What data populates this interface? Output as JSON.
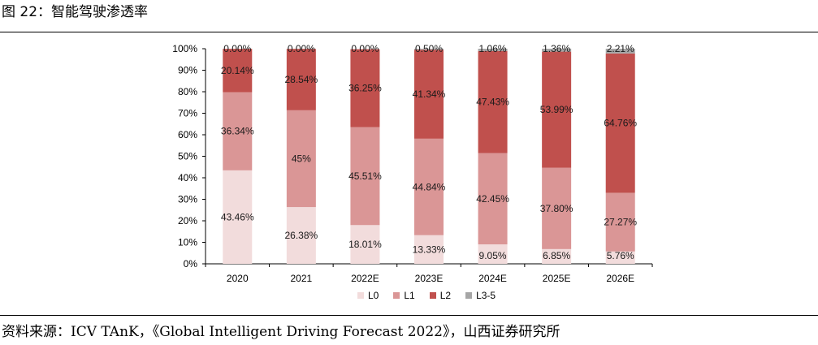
{
  "header": {
    "title": "图 22：智能驾驶渗透率"
  },
  "footer": {
    "source": "资料来源：ICV TAnK，《Global Intelligent Driving Forecast 2022》，山西证券研究所"
  },
  "chart_data": {
    "type": "bar",
    "stacked": true,
    "categories": [
      "2020",
      "2021",
      "2022E",
      "2023E",
      "2024E",
      "2025E",
      "2026E"
    ],
    "y_ticks": [
      "0%",
      "10%",
      "20%",
      "30%",
      "40%",
      "50%",
      "60%",
      "70%",
      "80%",
      "90%",
      "100%"
    ],
    "ylim": [
      0,
      100
    ],
    "legend_position": "bottom",
    "series": [
      {
        "name": "L0",
        "color": "#F2DCDC",
        "values": [
          43.46,
          26.38,
          18.01,
          13.33,
          9.05,
          6.85,
          5.76
        ],
        "labels": [
          "43.46%",
          "26.38%",
          "18.01%",
          "13.33%",
          "9.05%",
          "6.85%",
          "5.76%"
        ]
      },
      {
        "name": "L1",
        "color": "#DA9696",
        "values": [
          36.34,
          45,
          45.51,
          44.84,
          42.45,
          37.8,
          27.27
        ],
        "labels": [
          "36.34%",
          "45%",
          "45.51%",
          "44.84%",
          "42.45%",
          "37.80%",
          "27.27%"
        ]
      },
      {
        "name": "L2",
        "color": "#C0504D",
        "values": [
          20.14,
          28.54,
          36.25,
          41.34,
          47.43,
          53.99,
          64.76
        ],
        "labels": [
          "20.14%",
          "28.54%",
          "36.25%",
          "41.34%",
          "47.43%",
          "53.99%",
          "64.76%"
        ]
      },
      {
        "name": "L3-5",
        "color": "#A6A6A6",
        "values": [
          0.0,
          0.0,
          0.0,
          0.5,
          1.06,
          1.36,
          2.21
        ],
        "labels": [
          "0.00%",
          "0.00%",
          "0.00%",
          "0.50%",
          "1.06%",
          "1.36%",
          "2.21%"
        ]
      }
    ]
  }
}
